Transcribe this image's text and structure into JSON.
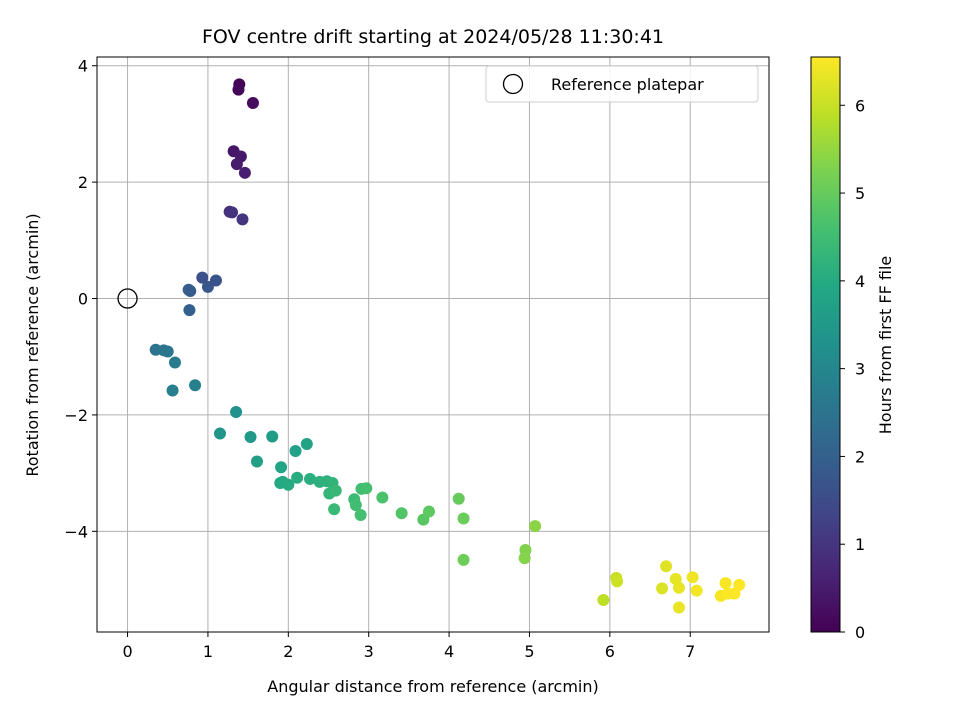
{
  "chart_data": {
    "type": "scatter",
    "title": "FOV centre drift starting at 2024/05/28 11:30:41",
    "xlabel": "Angular distance from reference (arcmin)",
    "ylabel": "Rotation from reference (arcmin)",
    "xlim": [
      -0.38,
      7.98
    ],
    "ylim": [
      -5.73,
      4.15
    ],
    "xticks": [
      0,
      1,
      2,
      3,
      4,
      5,
      6,
      7
    ],
    "yticks": [
      -4,
      -2,
      0,
      2,
      4
    ],
    "xtick_labels": [
      "0",
      "1",
      "2",
      "3",
      "4",
      "5",
      "6",
      "7"
    ],
    "ytick_labels": [
      "−4",
      "−2",
      "0",
      "2",
      "4"
    ],
    "grid": true,
    "legend": {
      "placement": "top-right",
      "entries": [
        {
          "label": "Reference platepar",
          "marker": "open-circle"
        }
      ]
    },
    "reference_point": {
      "x": 0,
      "y": 0
    },
    "colorbar": {
      "label": "Hours from first FF file",
      "range": [
        0,
        6.55
      ],
      "ticks": [
        0,
        1,
        2,
        3,
        4,
        5,
        6
      ],
      "tick_labels": [
        "0",
        "1",
        "2",
        "3",
        "4",
        "5",
        "6"
      ],
      "colormap": "viridis"
    },
    "points": [
      {
        "x": 1.39,
        "y": 3.68,
        "c": 0.05
      },
      {
        "x": 1.38,
        "y": 3.59,
        "c": 0.1
      },
      {
        "x": 1.56,
        "y": 3.36,
        "c": 0.2
      },
      {
        "x": 1.32,
        "y": 2.53,
        "c": 0.4
      },
      {
        "x": 1.41,
        "y": 2.44,
        "c": 0.45
      },
      {
        "x": 1.36,
        "y": 2.31,
        "c": 0.5
      },
      {
        "x": 1.46,
        "y": 2.16,
        "c": 0.55
      },
      {
        "x": 1.27,
        "y": 1.49,
        "c": 0.9
      },
      {
        "x": 1.3,
        "y": 1.48,
        "c": 0.95
      },
      {
        "x": 1.43,
        "y": 1.36,
        "c": 1.0
      },
      {
        "x": 0.93,
        "y": 0.36,
        "c": 1.6
      },
      {
        "x": 1.1,
        "y": 0.31,
        "c": 1.7
      },
      {
        "x": 1.0,
        "y": 0.2,
        "c": 1.8
      },
      {
        "x": 0.78,
        "y": 0.13,
        "c": 1.85
      },
      {
        "x": 0.76,
        "y": 0.15,
        "c": 1.9
      },
      {
        "x": 0.77,
        "y": -0.2,
        "c": 2.0
      },
      {
        "x": 0.35,
        "y": -0.88,
        "c": 2.5
      },
      {
        "x": 0.45,
        "y": -0.89,
        "c": 2.55
      },
      {
        "x": 0.5,
        "y": -0.91,
        "c": 2.6
      },
      {
        "x": 0.59,
        "y": -1.1,
        "c": 2.7
      },
      {
        "x": 0.56,
        "y": -1.58,
        "c": 2.8
      },
      {
        "x": 0.84,
        "y": -1.49,
        "c": 2.85
      },
      {
        "x": 1.35,
        "y": -1.95,
        "c": 3.3
      },
      {
        "x": 1.15,
        "y": -2.32,
        "c": 3.4
      },
      {
        "x": 1.53,
        "y": -2.38,
        "c": 3.5
      },
      {
        "x": 1.8,
        "y": -2.37,
        "c": 3.6
      },
      {
        "x": 1.61,
        "y": -2.8,
        "c": 3.65
      },
      {
        "x": 2.09,
        "y": -2.62,
        "c": 3.75
      },
      {
        "x": 2.23,
        "y": -2.5,
        "c": 3.8
      },
      {
        "x": 1.91,
        "y": -2.9,
        "c": 3.85
      },
      {
        "x": 1.93,
        "y": -3.15,
        "c": 3.9
      },
      {
        "x": 1.9,
        "y": -3.17,
        "c": 3.95
      },
      {
        "x": 2.0,
        "y": -3.2,
        "c": 4.0
      },
      {
        "x": 2.11,
        "y": -3.08,
        "c": 4.05
      },
      {
        "x": 2.27,
        "y": -3.1,
        "c": 4.1
      },
      {
        "x": 2.39,
        "y": -3.15,
        "c": 4.15
      },
      {
        "x": 2.48,
        "y": -3.14,
        "c": 4.2
      },
      {
        "x": 2.55,
        "y": -3.17,
        "c": 4.25
      },
      {
        "x": 2.51,
        "y": -3.35,
        "c": 4.3
      },
      {
        "x": 2.59,
        "y": -3.3,
        "c": 4.35
      },
      {
        "x": 2.57,
        "y": -3.62,
        "c": 4.4
      },
      {
        "x": 2.82,
        "y": -3.45,
        "c": 4.45
      },
      {
        "x": 2.84,
        "y": -3.55,
        "c": 4.5
      },
      {
        "x": 2.91,
        "y": -3.27,
        "c": 4.55
      },
      {
        "x": 2.97,
        "y": -3.26,
        "c": 4.6
      },
      {
        "x": 2.9,
        "y": -3.72,
        "c": 4.6
      },
      {
        "x": 3.17,
        "y": -3.42,
        "c": 4.65
      },
      {
        "x": 3.41,
        "y": -3.69,
        "c": 4.75
      },
      {
        "x": 3.68,
        "y": -3.8,
        "c": 4.85
      },
      {
        "x": 3.75,
        "y": -3.66,
        "c": 4.9
      },
      {
        "x": 4.12,
        "y": -3.44,
        "c": 5.0
      },
      {
        "x": 4.18,
        "y": -3.78,
        "c": 5.05
      },
      {
        "x": 4.18,
        "y": -4.49,
        "c": 5.1
      },
      {
        "x": 4.95,
        "y": -4.32,
        "c": 5.3
      },
      {
        "x": 4.94,
        "y": -4.46,
        "c": 5.35
      },
      {
        "x": 5.07,
        "y": -3.91,
        "c": 5.4
      },
      {
        "x": 5.92,
        "y": -5.18,
        "c": 5.9
      },
      {
        "x": 6.08,
        "y": -4.8,
        "c": 6.0
      },
      {
        "x": 6.09,
        "y": -4.86,
        "c": 6.05
      },
      {
        "x": 6.65,
        "y": -4.98,
        "c": 6.2
      },
      {
        "x": 6.7,
        "y": -4.6,
        "c": 6.25
      },
      {
        "x": 6.82,
        "y": -4.82,
        "c": 6.3
      },
      {
        "x": 6.86,
        "y": -4.97,
        "c": 6.35
      },
      {
        "x": 6.86,
        "y": -5.31,
        "c": 6.35
      },
      {
        "x": 7.03,
        "y": -4.79,
        "c": 6.4
      },
      {
        "x": 7.08,
        "y": -5.02,
        "c": 6.45
      },
      {
        "x": 7.38,
        "y": -5.11,
        "c": 6.5
      },
      {
        "x": 7.44,
        "y": -4.89,
        "c": 6.5
      },
      {
        "x": 7.47,
        "y": -5.07,
        "c": 6.52
      },
      {
        "x": 7.55,
        "y": -5.07,
        "c": 6.53
      },
      {
        "x": 7.61,
        "y": -4.92,
        "c": 6.55
      }
    ]
  }
}
